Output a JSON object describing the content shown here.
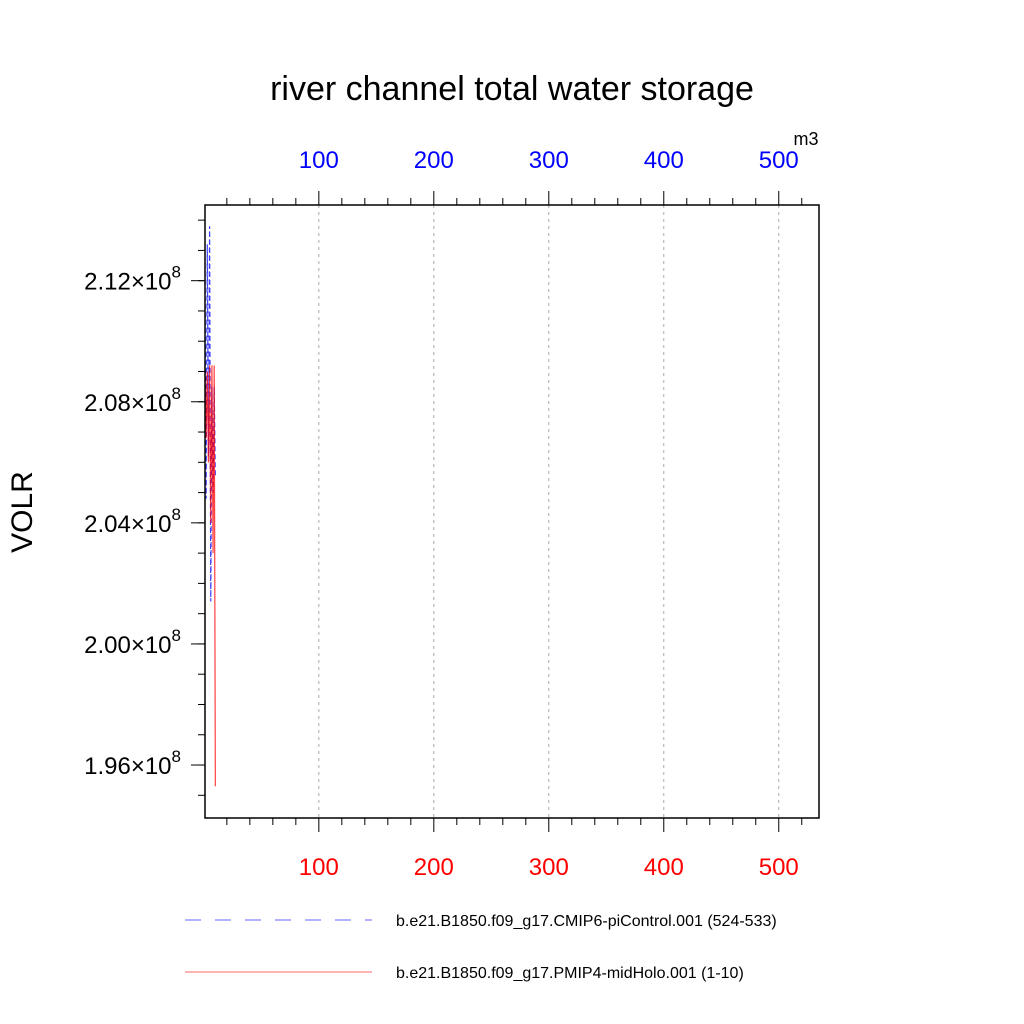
{
  "chart_data": {
    "type": "line",
    "title": "river channel total water storage",
    "ylabel": "VOLR",
    "units": "m3",
    "xlim": [
      1,
      535
    ],
    "ylim": [
      194250000.0,
      214500000.0
    ],
    "y_ticks": [
      {
        "value": 196000000.0,
        "mantissa": "1.96",
        "times": "×10",
        "exp": "8"
      },
      {
        "value": 200000000.0,
        "mantissa": "2.00",
        "times": "×10",
        "exp": "8"
      },
      {
        "value": 204000000.0,
        "mantissa": "2.04",
        "times": "×10",
        "exp": "8"
      },
      {
        "value": 208000000.0,
        "mantissa": "2.08",
        "times": "×10",
        "exp": "8"
      },
      {
        "value": 212000000.0,
        "mantissa": "2.12",
        "times": "×10",
        "exp": "8"
      }
    ],
    "x_ticks_top": [
      "100",
      "200",
      "300",
      "400",
      "500"
    ],
    "x_ticks_bottom": [
      "100",
      "200",
      "300",
      "400",
      "500"
    ],
    "x_tick_values": [
      100,
      200,
      300,
      400,
      500
    ],
    "grid": "vertical dashed",
    "legend_placement": "bottom",
    "series": [
      {
        "name": "b.e21.B1850.f09_g17.CMIP6-piControl.001 (524-533)",
        "color": "#0000ff",
        "style": "dashed",
        "x": [
          1,
          2,
          3,
          4,
          5,
          6,
          7,
          8,
          9,
          10
        ],
        "y": [
          212000000.0,
          204800000.0,
          213200000.0,
          206200000.0,
          213800000.0,
          201400000.0,
          208500000.0,
          205000000.0,
          208500000.0,
          205500000.0
        ]
      },
      {
        "name": "b.e21.B1850.f09_g17.PMIP4-midHolo.001 (1-10)",
        "color": "#ff0000",
        "style": "solid",
        "x": [
          1,
          2,
          3,
          4,
          5,
          6,
          7,
          8,
          9,
          10
        ],
        "y": [
          209200000.0,
          206800000.0,
          209000000.0,
          206000000.0,
          209200000.0,
          204000000.0,
          209200000.0,
          203000000.0,
          209200000.0,
          195300000.0
        ]
      }
    ]
  }
}
